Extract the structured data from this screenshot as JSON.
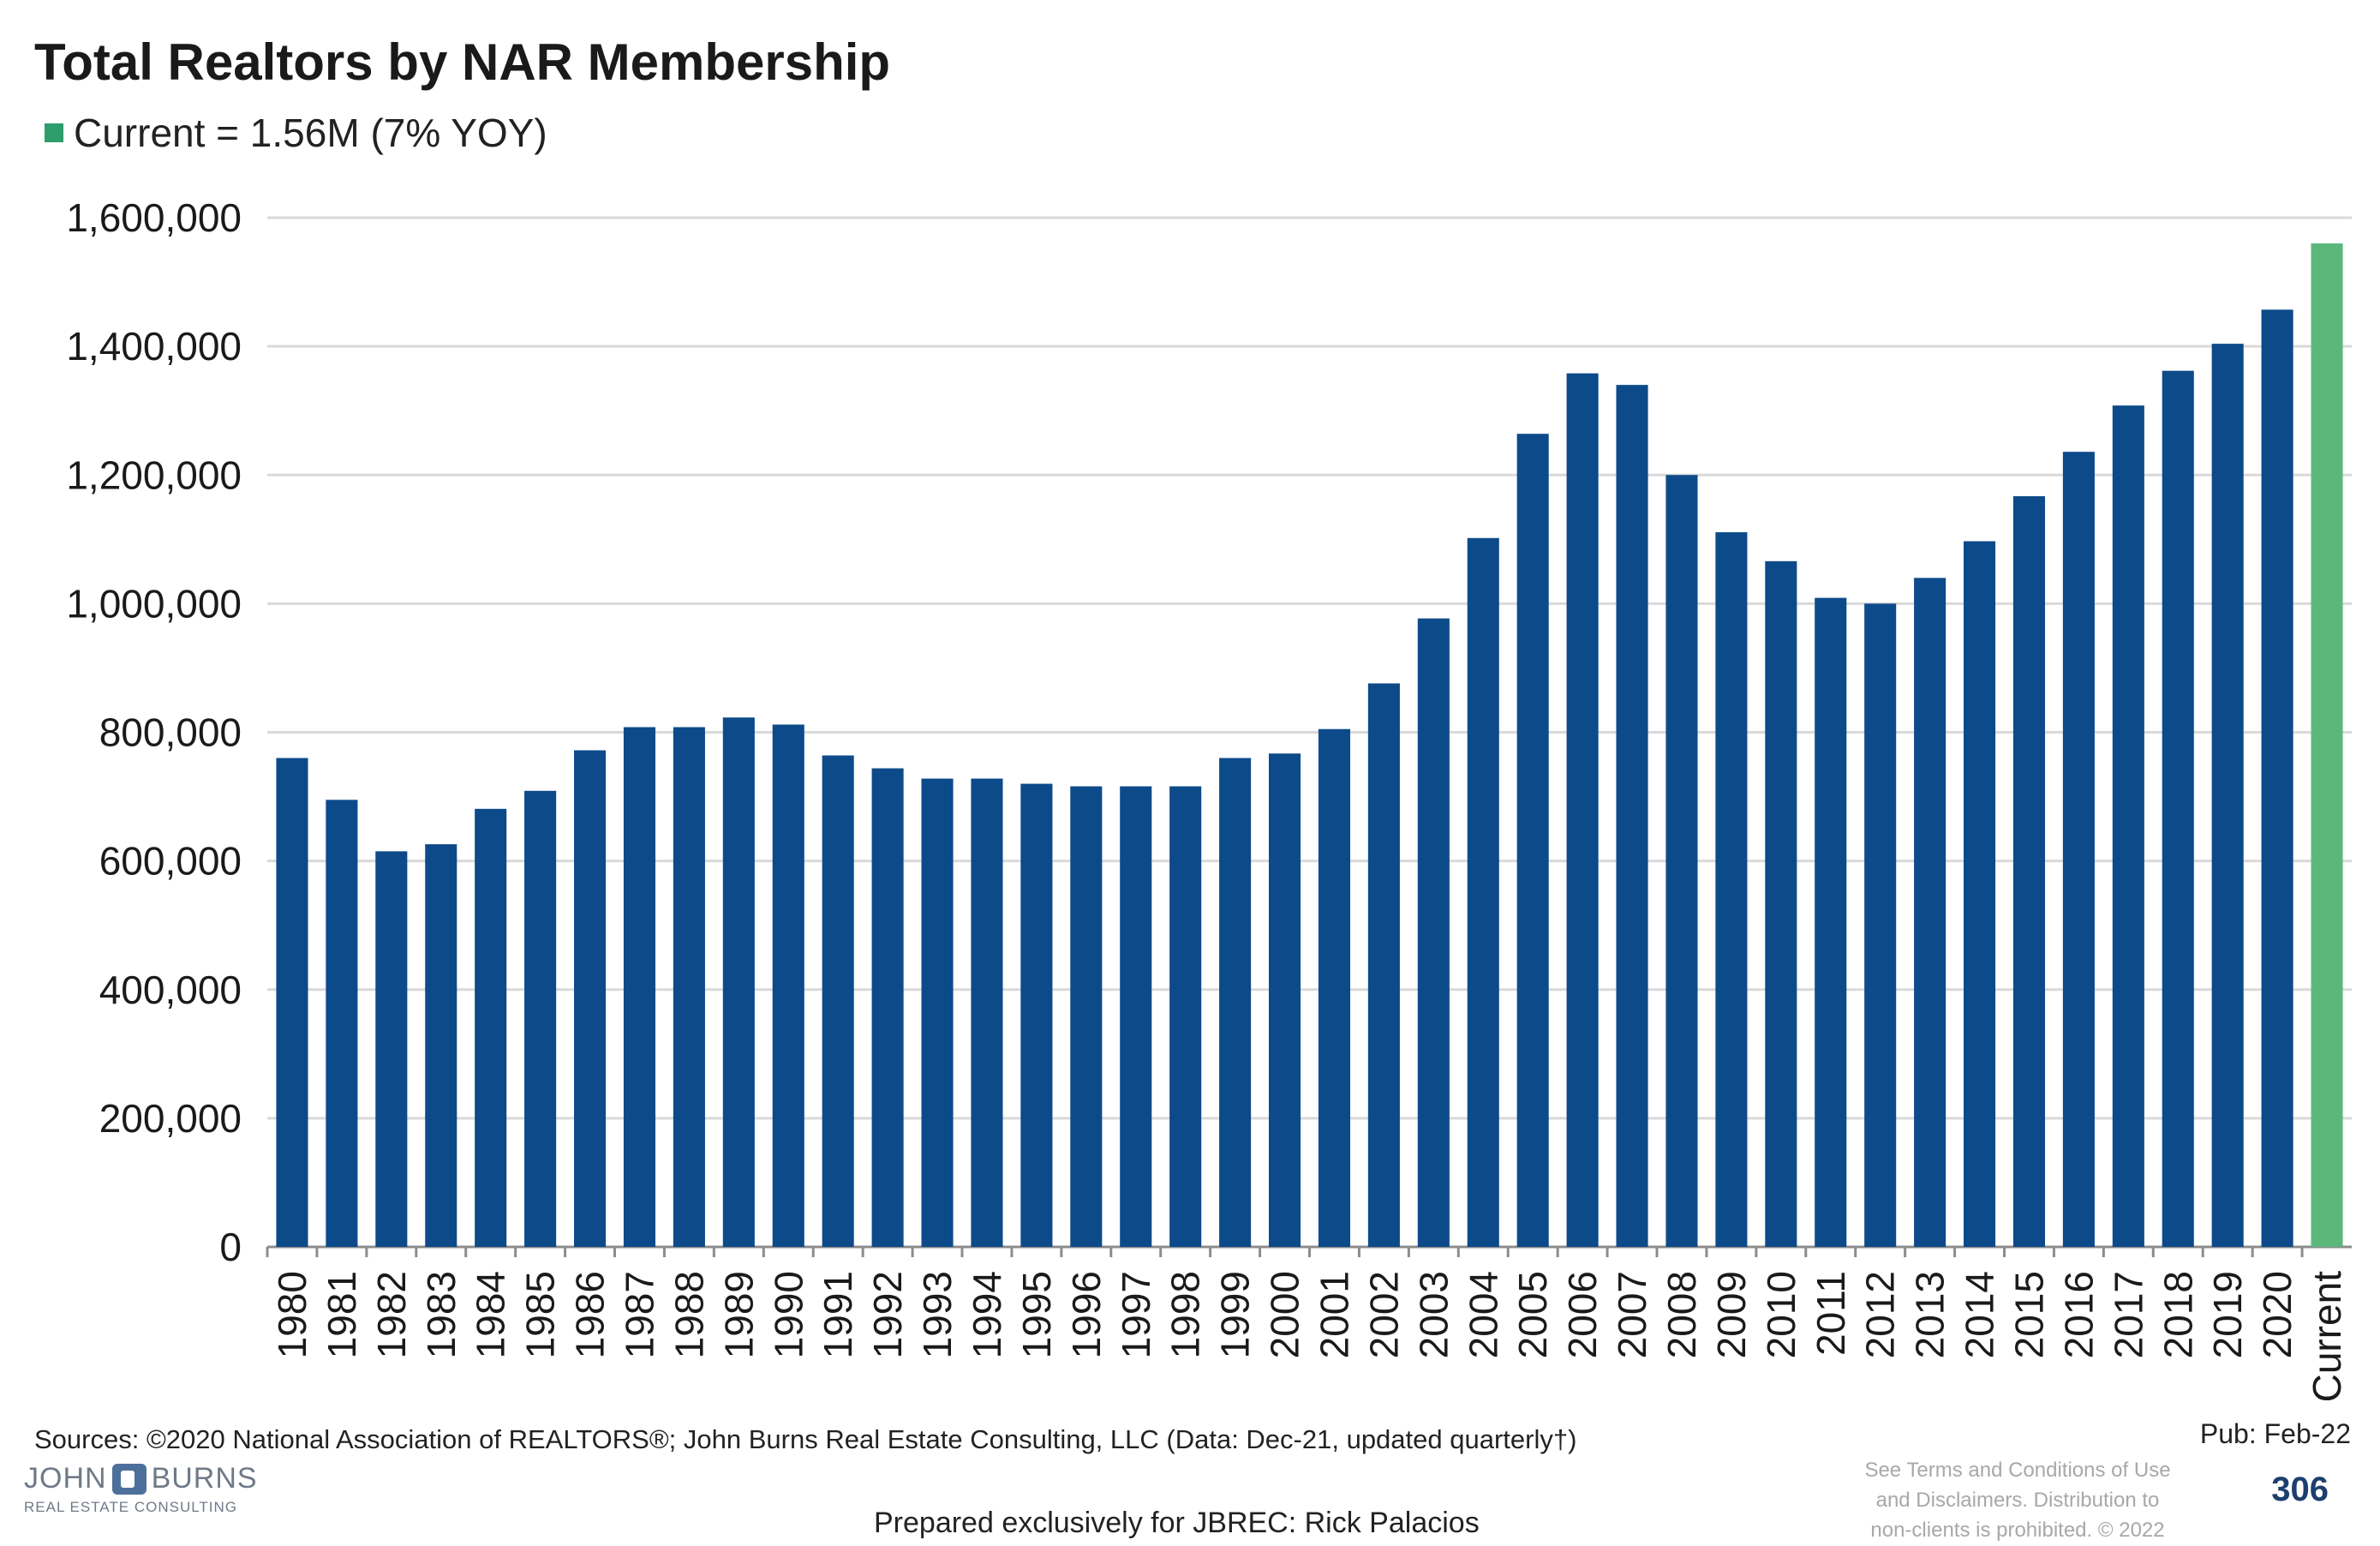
{
  "chart_data": {
    "type": "bar",
    "title": "Total Realtors by NAR Membership",
    "legend_label": "Current = 1.56M (7% YOY)",
    "categories": [
      "1980",
      "1981",
      "1982",
      "1983",
      "1984",
      "1985",
      "1986",
      "1987",
      "1988",
      "1989",
      "1990",
      "1991",
      "1992",
      "1993",
      "1994",
      "1995",
      "1996",
      "1997",
      "1998",
      "1999",
      "2000",
      "2001",
      "2002",
      "2003",
      "2004",
      "2005",
      "2006",
      "2007",
      "2008",
      "2009",
      "2010",
      "2011",
      "2012",
      "2013",
      "2014",
      "2015",
      "2016",
      "2017",
      "2018",
      "2019",
      "2020",
      "Current"
    ],
    "values": [
      760000,
      695000,
      615000,
      626000,
      681000,
      709000,
      772000,
      808000,
      808000,
      823000,
      812000,
      764000,
      744000,
      728000,
      728000,
      720000,
      716000,
      716000,
      716000,
      760000,
      767000,
      805000,
      876000,
      977000,
      1102000,
      1264000,
      1358000,
      1340000,
      1200000,
      1111000,
      1066000,
      1009000,
      1000000,
      1040000,
      1097000,
      1167000,
      1236000,
      1308000,
      1362000,
      1404000,
      1457000,
      1560000
    ],
    "highlight_category": "Current",
    "colors": {
      "bar": "#0d4a8a",
      "current": "#5bb87a",
      "grid": "#d9d9d9",
      "axis": "#8c8c8c"
    },
    "y_ticks": [
      "0",
      "200,000",
      "400,000",
      "600,000",
      "800,000",
      "1,000,000",
      "1,200,000",
      "1,400,000",
      "1,600,000"
    ],
    "ylim": [
      0,
      1600000
    ],
    "grid": true,
    "xlabel": "",
    "ylabel": ""
  },
  "footer": {
    "sources": "Sources: ©2020 National Association of REALTORS®; John Burns Real Estate Consulting, LLC (Data: Dec-21, updated quarterly†)",
    "pub": "Pub: Feb-22",
    "page_number": "306",
    "terms": [
      "See Terms and Conditions of Use",
      "and Disclaimers. Distribution to",
      "non-clients is prohibited. © 2022"
    ],
    "prepared": "Prepared exclusively for JBREC: Rick Palacios",
    "logo_text_left": "JOHN",
    "logo_text_right": "BURNS",
    "logo_subtext": "REAL ESTATE CONSULTING"
  }
}
